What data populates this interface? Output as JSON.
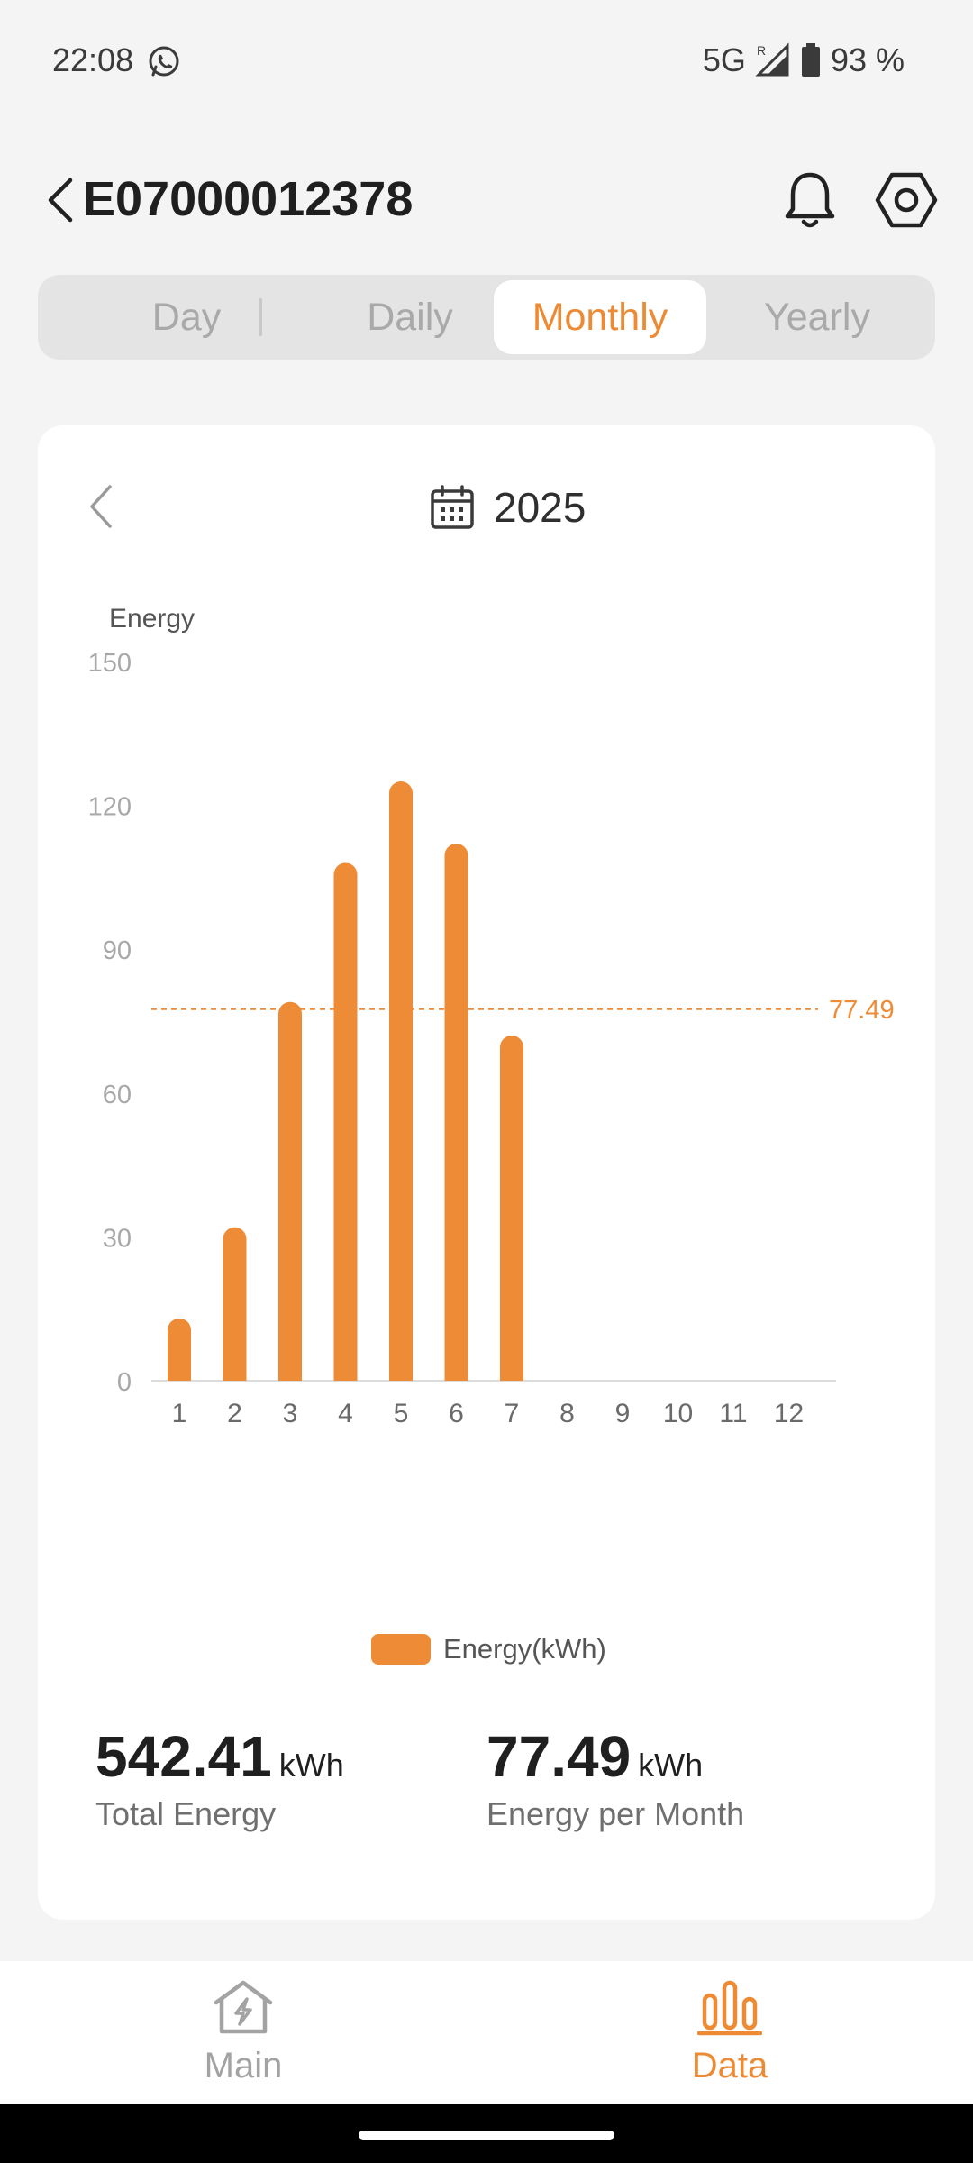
{
  "status_bar": {
    "time": "22:08",
    "network": "5G",
    "roaming": "R",
    "battery": "93 %",
    "icons": [
      "whatsapp-icon",
      "signal-icon",
      "battery-icon"
    ]
  },
  "header": {
    "title": "E07000012378",
    "icons": [
      "back-arrow-icon",
      "bell-icon",
      "hexagon-settings-icon"
    ]
  },
  "tabs": [
    {
      "label": "Day",
      "active": false
    },
    {
      "label": "Daily",
      "active": false
    },
    {
      "label": "Monthly",
      "active": true
    },
    {
      "label": "Yearly",
      "active": false
    }
  ],
  "date_nav": {
    "label": "2025",
    "icons": [
      "chevron-left-icon",
      "calendar-icon"
    ]
  },
  "chart_data": {
    "type": "bar",
    "title": "",
    "ylabel": "Energy",
    "xlabel": "",
    "ylim": [
      0,
      150
    ],
    "yticks": [
      0,
      30,
      60,
      90,
      120,
      150
    ],
    "categories": [
      "1",
      "2",
      "3",
      "4",
      "5",
      "6",
      "7",
      "8",
      "9",
      "10",
      "11",
      "12"
    ],
    "series": [
      {
        "name": "Energy(kWh)",
        "values": [
          13,
          32,
          79,
          108,
          125,
          112,
          72,
          0,
          0,
          0,
          0,
          0
        ]
      }
    ],
    "reference_line": {
      "value": 77.49,
      "label": "77.49",
      "style": "dashed"
    },
    "legend": "bottom",
    "grid": false,
    "colors": {
      "bar": "#ee8b36",
      "reference": "#ee8b36",
      "axis": "#dcdcdc",
      "tick": "#a8a8a8",
      "ylabel": "#555555"
    }
  },
  "summary": {
    "total": {
      "value": "542.41",
      "unit": "kWh",
      "label": "Total Energy"
    },
    "average": {
      "value": "77.49",
      "unit": "kWh",
      "label": "Energy per Month"
    }
  },
  "bottom_nav": [
    {
      "label": "Main",
      "icon": "home-bolt-icon",
      "active": false
    },
    {
      "label": "Data",
      "icon": "bar-chart-icon",
      "active": true
    }
  ],
  "colors": {
    "accent": "#ed8a34",
    "background": "#f4f4f4",
    "card": "#ffffff",
    "inactive": "#a3a3a3"
  }
}
